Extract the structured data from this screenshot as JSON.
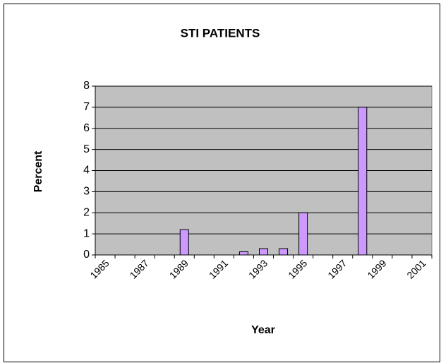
{
  "chart_data": {
    "type": "bar",
    "title": "STI PATIENTS",
    "x_label": "Year",
    "y_label": "Percent",
    "categories": [
      "1985",
      null,
      "1987",
      null,
      "1989",
      null,
      "1991",
      null,
      "1993",
      null,
      "1995",
      null,
      "1997",
      null,
      "1999",
      null,
      "2001"
    ],
    "values": [
      null,
      null,
      null,
      null,
      1.2,
      null,
      null,
      0.15,
      0.3,
      0.3,
      2.0,
      null,
      null,
      7.0,
      null,
      null,
      null
    ],
    "color": "#cc99ff",
    "plot_background": "#c0c0c0",
    "ylim": [
      0,
      8
    ],
    "yticks": [
      0,
      1,
      2,
      3,
      4,
      5,
      6,
      7,
      8
    ],
    "grid": true
  }
}
